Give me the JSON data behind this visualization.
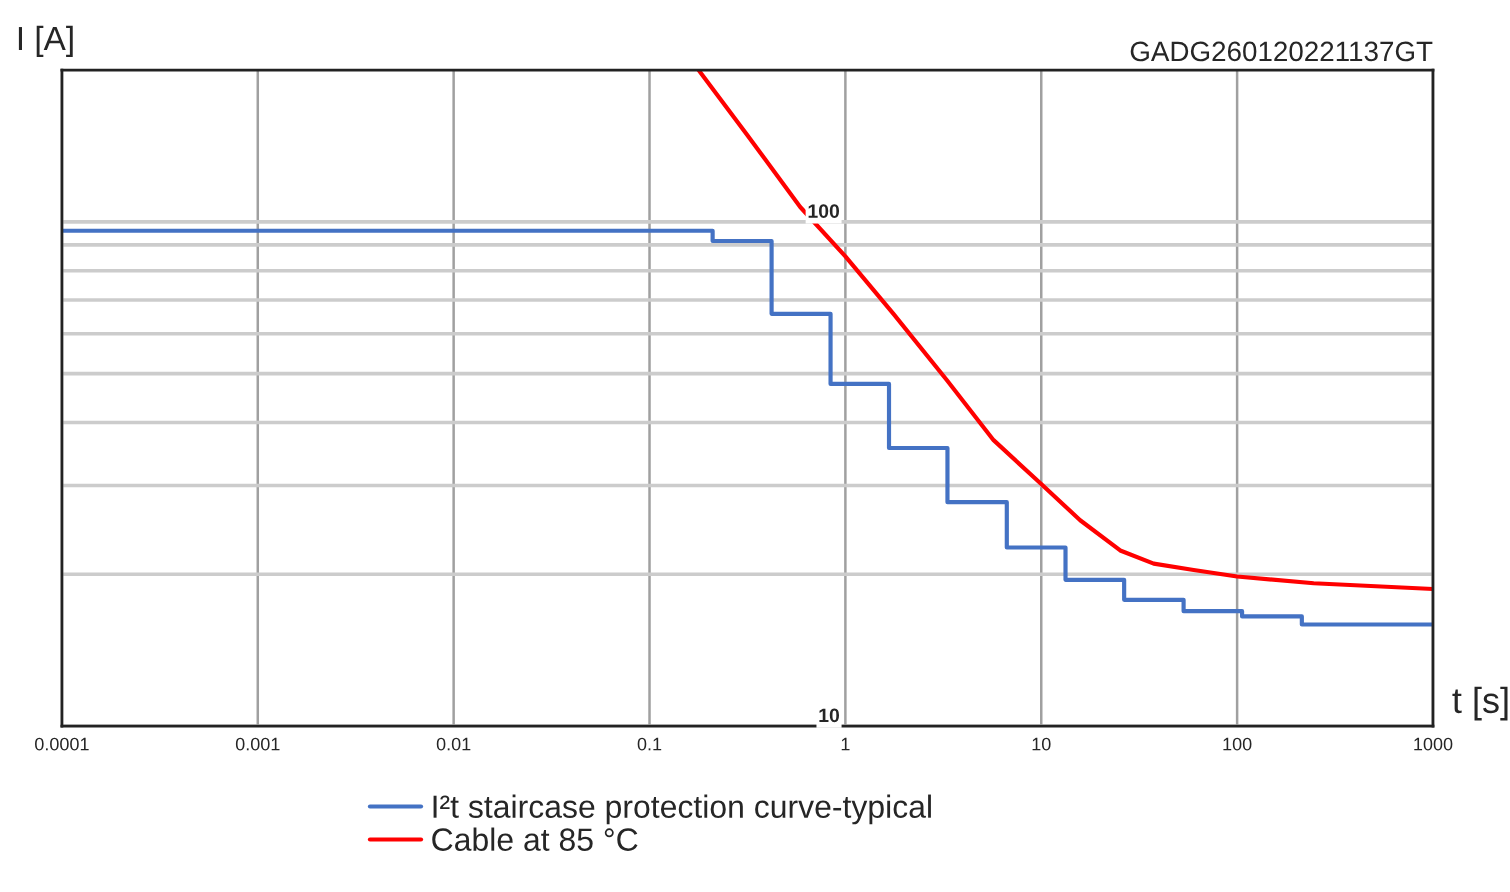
{
  "chart_data": {
    "type": "line",
    "ylabel": "I [A]",
    "xlabel": "t [s]",
    "annotations": [
      "GADG260120221137GT"
    ],
    "log": "xy",
    "xlim": [
      0.0001,
      1000
    ],
    "xticks": [
      {
        "value": 0.0001,
        "label": "0.0001"
      },
      {
        "value": 0.001,
        "label": "0.001"
      },
      {
        "value": 0.01,
        "label": "0.01"
      },
      {
        "value": 0.1,
        "label": "0.1"
      },
      1,
      10,
      100,
      1000
    ],
    "ylim": [
      10,
      200
    ],
    "yticks": [
      10,
      {
        "value": 20,
        "label": null
      },
      {
        "value": 30,
        "label": null
      },
      {
        "value": 40,
        "label": null
      },
      {
        "value": 50,
        "label": null
      },
      {
        "value": 60,
        "label": null
      },
      {
        "value": 70,
        "label": null
      },
      {
        "value": 80,
        "label": null
      },
      {
        "value": 90,
        "label": null
      },
      100
    ],
    "grid": true,
    "legend": "bottom",
    "series": [
      {
        "name": "I²t staircase protection curve-typical",
        "type": "step",
        "color": "#4472c4",
        "x": [
          0.0001,
          0.21,
          0.42,
          0.84,
          1.67,
          3.32,
          6.67,
          13.3,
          26.5,
          53.3,
          106,
          214,
          1000
        ],
        "values": [
          96,
          91.6,
          65.7,
          47.7,
          35.6,
          27.8,
          22.6,
          19.5,
          17.8,
          16.9,
          16.5,
          15.9,
          15.9
        ]
      },
      {
        "name": "Cable at 85 °C",
        "type": "line",
        "color": "#ff0000",
        "x": [
          0.178,
          0.314,
          0.588,
          1.0,
          1.76,
          3.3,
          5.71,
          9.9,
          15.8,
          25.3,
          37.5,
          60,
          100,
          246,
          1000
        ],
        "values": [
          200,
          149,
          107,
          85.4,
          65.7,
          48.5,
          36.9,
          30.3,
          25.6,
          22.3,
          21.0,
          20.4,
          19.8,
          19.2,
          18.7
        ]
      }
    ]
  }
}
